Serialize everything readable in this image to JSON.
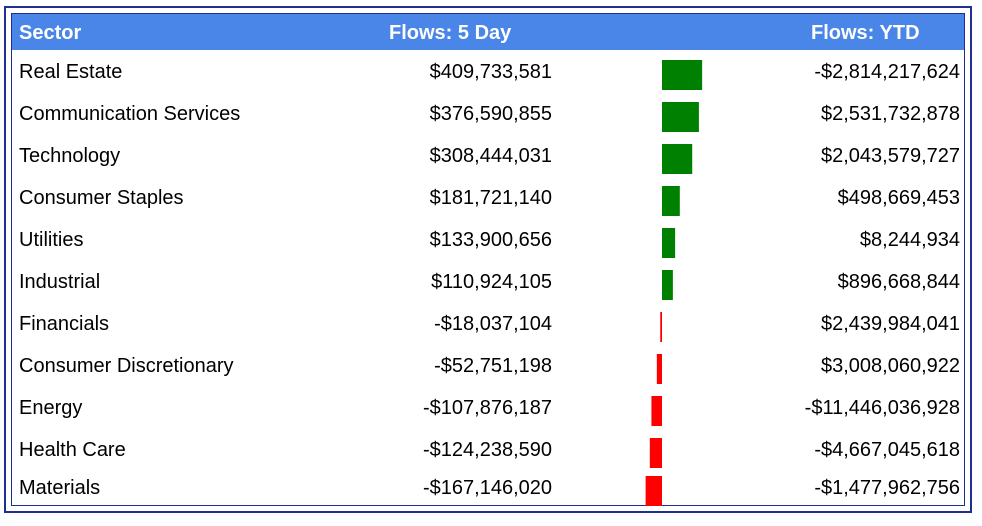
{
  "chart_data": {
    "type": "table",
    "columns": [
      "Sector",
      "Flows: 5 Day",
      "Flows: YTD"
    ],
    "rows": [
      {
        "sector": "Real Estate",
        "flow5": "$409,733,581",
        "flow5_value": 409733581,
        "ytd": "-$2,814,217,624"
      },
      {
        "sector": "Communication Services",
        "flow5": "$376,590,855",
        "flow5_value": 376590855,
        "ytd": "$2,531,732,878"
      },
      {
        "sector": "Technology",
        "flow5": "$308,444,031",
        "flow5_value": 308444031,
        "ytd": "$2,043,579,727"
      },
      {
        "sector": "Consumer Staples",
        "flow5": "$181,721,140",
        "flow5_value": 181721140,
        "ytd": "$498,669,453"
      },
      {
        "sector": "Utilities",
        "flow5": "$133,900,656",
        "flow5_value": 133900656,
        "ytd": "$8,244,934"
      },
      {
        "sector": "Industrial",
        "flow5": "$110,924,105",
        "flow5_value": 110924105,
        "ytd": "$896,668,844"
      },
      {
        "sector": "Financials",
        "flow5": "-$18,037,104",
        "flow5_value": -18037104,
        "ytd": "$2,439,984,041"
      },
      {
        "sector": "Consumer Discretionary",
        "flow5": "-$52,751,198",
        "flow5_value": -52751198,
        "ytd": "$3,008,060,922"
      },
      {
        "sector": "Energy",
        "flow5": "-$107,876,187",
        "flow5_value": -107876187,
        "ytd": "-$11,446,036,928"
      },
      {
        "sector": "Health Care",
        "flow5": "-$124,238,590",
        "flow5_value": -124238590,
        "ytd": "-$4,667,045,618"
      },
      {
        "sector": "Materials",
        "flow5": "-$167,146,020",
        "flow5_value": -167146020,
        "ytd": "-$1,477,962,756"
      }
    ],
    "bar_colors": {
      "positive": "#008000",
      "negative": "#ff0000"
    }
  }
}
